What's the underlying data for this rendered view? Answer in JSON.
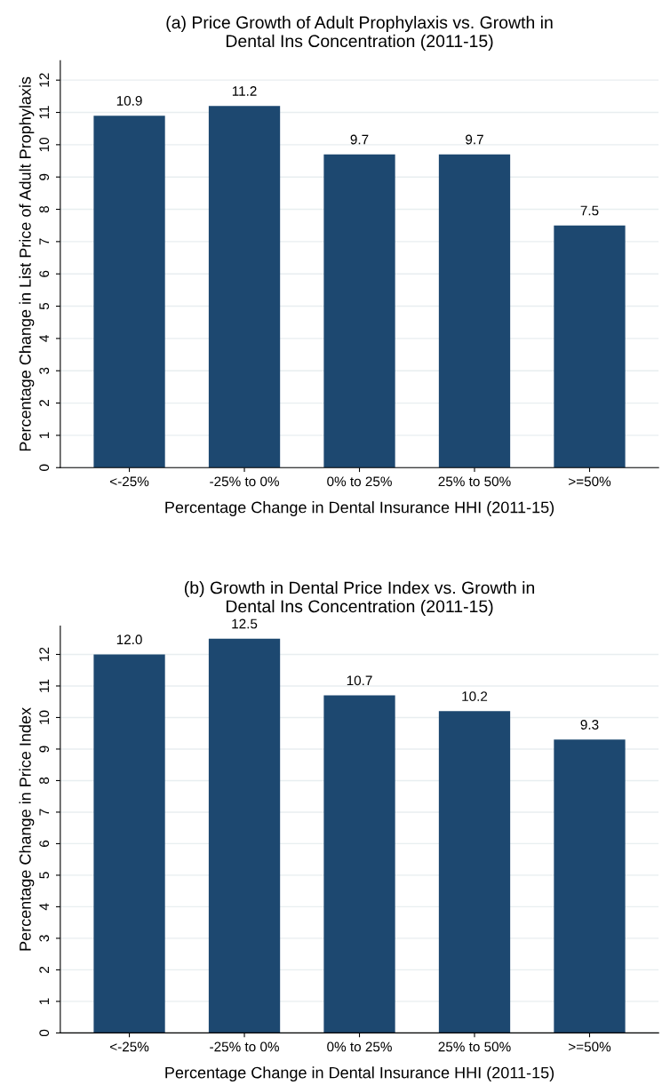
{
  "chart_data": [
    {
      "type": "bar",
      "title": "(a) Price Growth of Adult Prophylaxis vs. Growth in\nDental Ins Concentration (2011-15)",
      "xlabel": "Percentage Change in Dental Insurance HHI (2011-15)",
      "ylabel": "Percentage Change in List Price of Adult Prophylaxis",
      "categories": [
        "<-25%",
        "-25% to 0%",
        "0% to 25%",
        "25% to 50%",
        ">=50%"
      ],
      "values": [
        10.9,
        11.2,
        9.7,
        9.7,
        7.5
      ],
      "color": "#1d4870",
      "ylim": [
        0,
        12.6
      ],
      "yticks": [
        0,
        1,
        2,
        3,
        4,
        5,
        6,
        7,
        8,
        9,
        10,
        11,
        12
      ],
      "grid": "y",
      "data_labels": true
    },
    {
      "type": "bar",
      "title": "(b) Growth in Dental Price Index vs. Growth in\nDental Ins Concentration (2011-15)",
      "xlabel": "Percentage Change in Dental Insurance HHI (2011-15)",
      "ylabel": "Percentage Change in Price Index",
      "categories": [
        "<-25%",
        "-25% to 0%",
        "0% to 25%",
        "25% to 50%",
        ">=50%"
      ],
      "values": [
        12.0,
        12.5,
        10.7,
        10.2,
        9.3
      ],
      "value_labels": [
        "12.0",
        "12.5",
        "10.7",
        "10.2",
        "9.3"
      ],
      "color": "#1d4870",
      "ylim": [
        0,
        12.9
      ],
      "yticks": [
        0,
        1,
        2,
        3,
        4,
        5,
        6,
        7,
        8,
        9,
        10,
        11,
        12
      ],
      "grid": "y"
    }
  ]
}
